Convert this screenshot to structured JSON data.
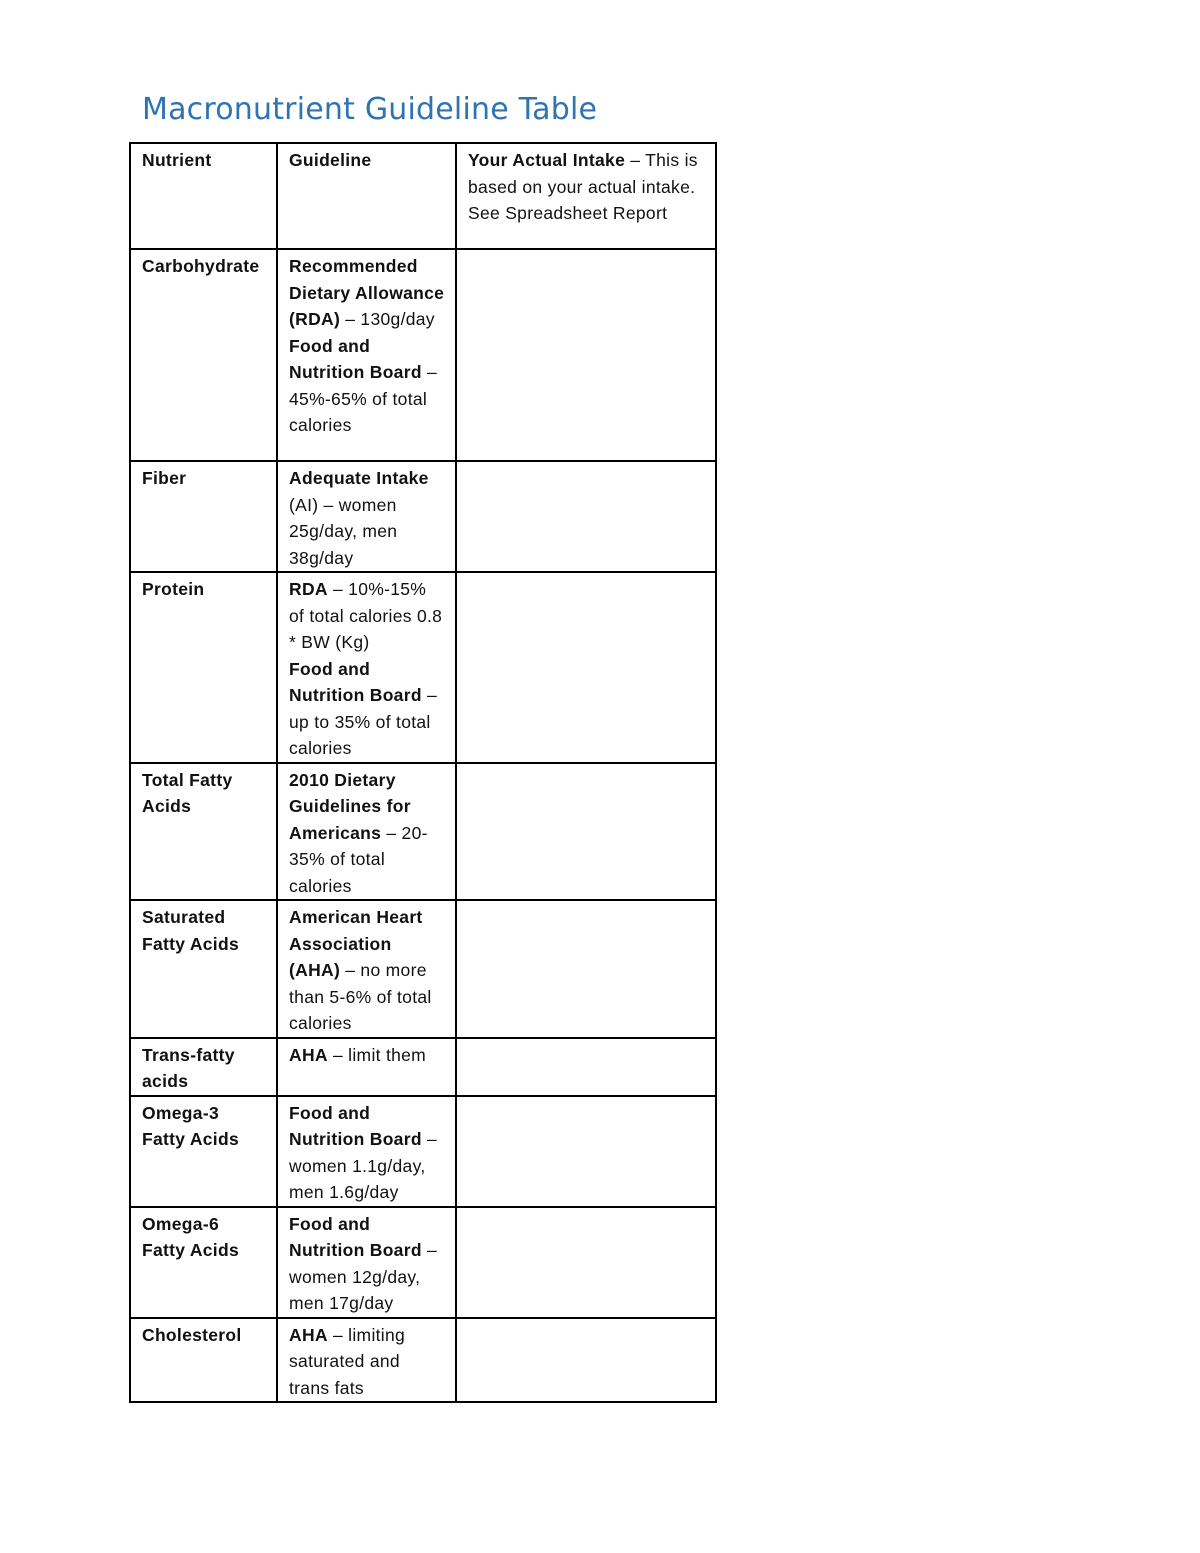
{
  "title": "Macronutrient Guideline Table",
  "header": {
    "nutrient": "Nutrient",
    "guideline": "Guideline",
    "intake_bold": "Your Actual Intake",
    "intake_rest": " – This is based on your actual intake. See Spreadsheet Report"
  },
  "rows": [
    {
      "nutrient": "Carbohydrate",
      "guideline": [
        [
          {
            "t": "Recommended Dietary Allowance (RDA)",
            "b": true
          },
          {
            "t": " – 130g/day",
            "b": false
          }
        ],
        [
          {
            "t": "Food and Nutrition Board",
            "b": true
          },
          {
            "t": " – 45%-65% of total calories",
            "b": false
          }
        ]
      ],
      "intake": ""
    },
    {
      "nutrient": "Fiber",
      "guideline": [
        [
          {
            "t": "Adequate Intake",
            "b": true
          },
          {
            "t": " (AI) – women 25g/day, men 38g/day",
            "b": false
          }
        ]
      ],
      "intake": ""
    },
    {
      "nutrient": "Protein",
      "guideline": [
        [
          {
            "t": "RDA",
            "b": true
          },
          {
            "t": " – 10%-15% of total calories 0.8 * BW (Kg)",
            "b": false
          }
        ],
        [
          {
            "t": "Food and Nutrition Board",
            "b": true
          },
          {
            "t": " – up to 35% of total calories",
            "b": false
          }
        ]
      ],
      "intake": ""
    },
    {
      "nutrient": "Total Fatty Acids",
      "guideline": [
        [
          {
            "t": "2010 Dietary Guidelines for Americans",
            "b": true
          },
          {
            "t": " – 20-35% of total calories",
            "b": false
          }
        ]
      ],
      "intake": ""
    },
    {
      "nutrient": "Saturated Fatty Acids",
      "guideline": [
        [
          {
            "t": "American Heart Association (AHA)",
            "b": true
          },
          {
            "t": " – no more than 5-6% of total calories",
            "b": false
          }
        ]
      ],
      "intake": ""
    },
    {
      "nutrient": "Trans-fatty acids",
      "guideline": [
        [
          {
            "t": "AHA",
            "b": true
          },
          {
            "t": " – limit them",
            "b": false
          }
        ]
      ],
      "intake": ""
    },
    {
      "nutrient": "Omega-3 Fatty Acids",
      "guideline": [
        [
          {
            "t": "Food and Nutrition Board",
            "b": true
          },
          {
            "t": " – women 1.1g/day, men 1.6g/day",
            "b": false
          }
        ]
      ],
      "intake": ""
    },
    {
      "nutrient": "Omega-6 Fatty Acids",
      "guideline": [
        [
          {
            "t": "Food and Nutrition Board",
            "b": true
          },
          {
            "t": " – women 12g/day, men 17g/day",
            "b": false
          }
        ]
      ],
      "intake": ""
    },
    {
      "nutrient": "Cholesterol",
      "guideline": [
        [
          {
            "t": "AHA",
            "b": true
          },
          {
            "t": " – limiting saturated and trans fats",
            "b": false
          }
        ]
      ],
      "intake": ""
    }
  ]
}
